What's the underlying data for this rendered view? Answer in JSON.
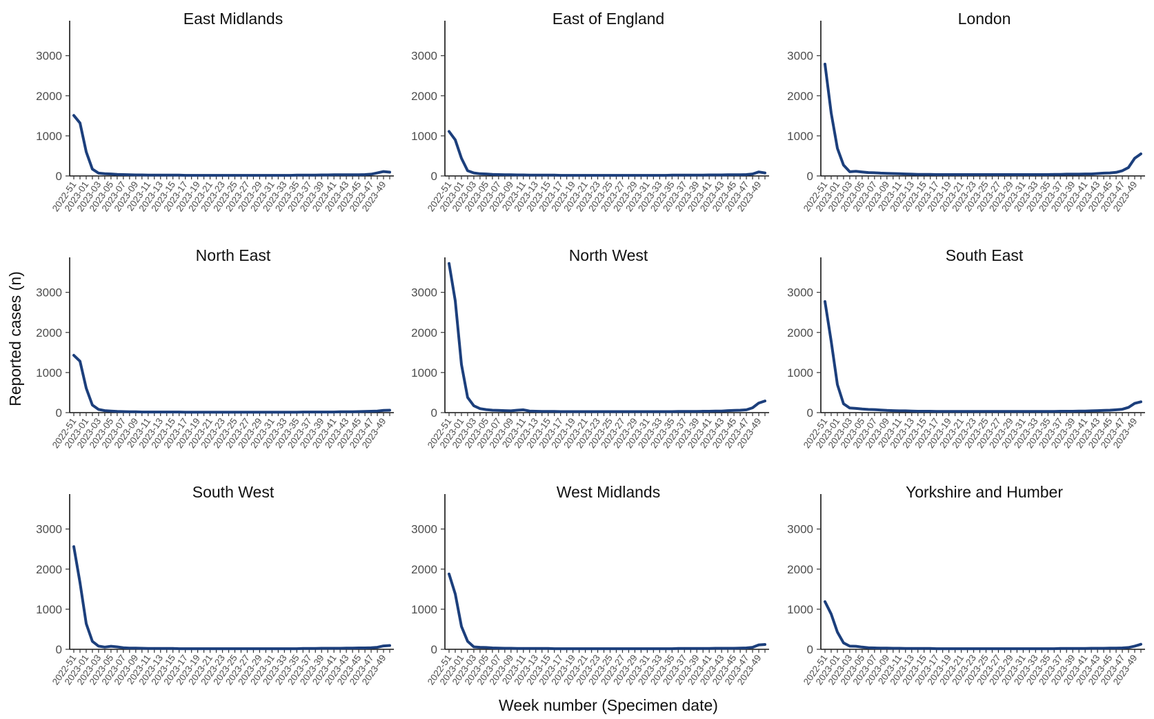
{
  "ylabel": "Reported cases (n)",
  "xlabel": "Week number (Specimen date)",
  "colors": {
    "series": "#1c3f7c",
    "axis": "#111111",
    "tick_text": "#4d4d4d"
  },
  "chart_data": {
    "type": "line",
    "xlabel": "Week number (Specimen date)",
    "ylabel": "Reported cases (n)",
    "ylim": [
      0,
      3700
    ],
    "yticks": [
      0,
      1000,
      2000,
      3000
    ],
    "grid": false,
    "x": [
      "2022-51",
      "2022-52",
      "2023-01",
      "2023-02",
      "2023-03",
      "2023-04",
      "2023-05",
      "2023-06",
      "2023-07",
      "2023-08",
      "2023-09",
      "2023-10",
      "2023-11",
      "2023-12",
      "2023-13",
      "2023-14",
      "2023-15",
      "2023-16",
      "2023-17",
      "2023-18",
      "2023-19",
      "2023-20",
      "2023-21",
      "2023-22",
      "2023-23",
      "2023-24",
      "2023-25",
      "2023-26",
      "2023-27",
      "2023-28",
      "2023-29",
      "2023-30",
      "2023-31",
      "2023-32",
      "2023-33",
      "2023-34",
      "2023-35",
      "2023-36",
      "2023-37",
      "2023-38",
      "2023-39",
      "2023-40",
      "2023-41",
      "2023-42",
      "2023-43",
      "2023-44",
      "2023-45",
      "2023-46",
      "2023-47",
      "2023-48",
      "2023-49",
      "2023-50"
    ],
    "xtick_labels": [
      "2022-51",
      "2023-01",
      "2023-03",
      "2023-05",
      "2023-07",
      "2023-09",
      "2023-11",
      "2023-13",
      "2023-15",
      "2023-17",
      "2023-19",
      "2023-21",
      "2023-23",
      "2023-25",
      "2023-27",
      "2023-29",
      "2023-31",
      "2023-33",
      "2023-35",
      "2023-37",
      "2023-39",
      "2023-41",
      "2023-43",
      "2023-45",
      "2023-47",
      "2023-49"
    ],
    "panels": [
      {
        "title": "East Midlands",
        "values": [
          1510,
          1320,
          600,
          170,
          70,
          55,
          50,
          40,
          35,
          30,
          25,
          25,
          20,
          20,
          20,
          20,
          20,
          20,
          15,
          15,
          15,
          15,
          15,
          15,
          15,
          15,
          15,
          15,
          15,
          15,
          15,
          15,
          15,
          15,
          15,
          15,
          20,
          20,
          20,
          20,
          25,
          25,
          30,
          30,
          30,
          30,
          30,
          35,
          45,
          75,
          110,
          95
        ]
      },
      {
        "title": "East of England",
        "values": [
          1110,
          900,
          440,
          130,
          75,
          55,
          50,
          40,
          35,
          30,
          30,
          25,
          25,
          20,
          20,
          20,
          20,
          20,
          15,
          15,
          15,
          15,
          15,
          15,
          15,
          15,
          15,
          15,
          15,
          15,
          15,
          15,
          15,
          15,
          15,
          15,
          20,
          20,
          20,
          20,
          20,
          20,
          25,
          25,
          25,
          30,
          30,
          30,
          35,
          50,
          100,
          75
        ]
      },
      {
        "title": "London",
        "values": [
          2790,
          1570,
          690,
          270,
          105,
          115,
          100,
          85,
          80,
          70,
          65,
          60,
          55,
          50,
          45,
          40,
          40,
          40,
          35,
          35,
          35,
          35,
          35,
          35,
          35,
          35,
          35,
          35,
          35,
          35,
          35,
          35,
          35,
          35,
          35,
          35,
          35,
          40,
          40,
          45,
          45,
          45,
          50,
          50,
          60,
          70,
          75,
          90,
          130,
          210,
          440,
          550
        ]
      },
      {
        "title": "North East",
        "values": [
          1430,
          1280,
          610,
          190,
          80,
          50,
          40,
          30,
          25,
          20,
          20,
          15,
          15,
          15,
          15,
          15,
          15,
          15,
          10,
          10,
          10,
          10,
          10,
          10,
          10,
          10,
          10,
          10,
          10,
          10,
          10,
          10,
          10,
          10,
          10,
          10,
          10,
          15,
          15,
          15,
          15,
          15,
          15,
          20,
          20,
          20,
          25,
          30,
          35,
          40,
          55,
          60
        ]
      },
      {
        "title": "North West",
        "values": [
          3720,
          2790,
          1200,
          380,
          170,
          100,
          75,
          60,
          55,
          50,
          45,
          60,
          70,
          40,
          35,
          30,
          30,
          30,
          25,
          25,
          25,
          25,
          25,
          25,
          25,
          25,
          25,
          25,
          25,
          25,
          25,
          25,
          25,
          25,
          25,
          25,
          25,
          30,
          30,
          30,
          30,
          35,
          35,
          40,
          40,
          50,
          55,
          60,
          70,
          120,
          240,
          290
        ]
      },
      {
        "title": "South East",
        "values": [
          2770,
          1780,
          700,
          220,
          115,
          105,
          90,
          80,
          75,
          65,
          55,
          50,
          45,
          45,
          40,
          35,
          35,
          35,
          30,
          30,
          30,
          30,
          30,
          30,
          30,
          30,
          30,
          30,
          30,
          30,
          30,
          30,
          30,
          30,
          30,
          30,
          30,
          30,
          35,
          35,
          35,
          40,
          40,
          45,
          50,
          55,
          60,
          70,
          85,
          130,
          230,
          270
        ]
      },
      {
        "title": "South West",
        "values": [
          2560,
          1660,
          640,
          200,
          80,
          55,
          75,
          60,
          40,
          30,
          30,
          25,
          20,
          20,
          20,
          20,
          20,
          15,
          15,
          15,
          15,
          15,
          15,
          15,
          15,
          15,
          15,
          15,
          15,
          15,
          15,
          15,
          15,
          15,
          15,
          15,
          15,
          20,
          20,
          20,
          25,
          25,
          25,
          25,
          30,
          30,
          35,
          35,
          40,
          50,
          85,
          95
        ]
      },
      {
        "title": "West Midlands",
        "values": [
          1880,
          1380,
          570,
          200,
          60,
          50,
          45,
          35,
          30,
          25,
          25,
          20,
          20,
          20,
          20,
          20,
          20,
          15,
          15,
          15,
          15,
          15,
          15,
          15,
          15,
          15,
          15,
          15,
          15,
          15,
          15,
          15,
          15,
          15,
          15,
          15,
          15,
          20,
          20,
          20,
          20,
          20,
          20,
          25,
          25,
          25,
          25,
          30,
          35,
          50,
          110,
          120
        ]
      },
      {
        "title": "Yorkshire and Humber",
        "values": [
          1190,
          880,
          430,
          160,
          80,
          75,
          55,
          40,
          35,
          30,
          30,
          25,
          25,
          20,
          20,
          20,
          20,
          20,
          15,
          15,
          15,
          15,
          15,
          15,
          15,
          15,
          15,
          15,
          15,
          15,
          15,
          15,
          15,
          15,
          15,
          15,
          15,
          15,
          20,
          20,
          20,
          20,
          20,
          25,
          25,
          25,
          30,
          30,
          35,
          45,
          80,
          125
        ]
      }
    ]
  }
}
